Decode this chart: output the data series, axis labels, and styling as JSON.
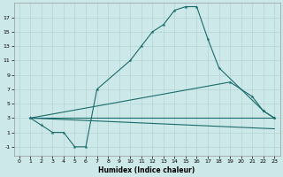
{
  "xlabel": "Humidex (Indice chaleur)",
  "bg_color": "#cde8e8",
  "line_color": "#1a6b6b",
  "grid_color": "#b8d8d8",
  "xlim": [
    -0.5,
    23.5
  ],
  "ylim": [
    -2.2,
    19.0
  ],
  "yticks": [
    -1,
    1,
    3,
    5,
    7,
    9,
    11,
    13,
    15,
    17
  ],
  "xticks": [
    0,
    1,
    2,
    3,
    4,
    5,
    6,
    7,
    8,
    9,
    10,
    11,
    12,
    13,
    14,
    15,
    16,
    17,
    18,
    19,
    20,
    21,
    22,
    23
  ],
  "curve1_x": [
    1,
    2,
    3,
    4,
    5,
    6,
    7,
    10,
    11,
    12,
    13,
    14,
    15,
    16,
    17,
    18,
    22,
    23
  ],
  "curve1_y": [
    3,
    2,
    1,
    1,
    -1,
    -1,
    7,
    11,
    13,
    15,
    16,
    18,
    18.5,
    18.5,
    14,
    10,
    4,
    3
  ],
  "curve2_x": [
    1,
    19,
    21,
    22,
    23
  ],
  "curve2_y": [
    3,
    8,
    6,
    4,
    3
  ],
  "curve3_x": [
    1,
    23
  ],
  "curve3_y": [
    3,
    3
  ],
  "curve4_x": [
    1,
    23
  ],
  "curve4_y": [
    3,
    1.5
  ]
}
